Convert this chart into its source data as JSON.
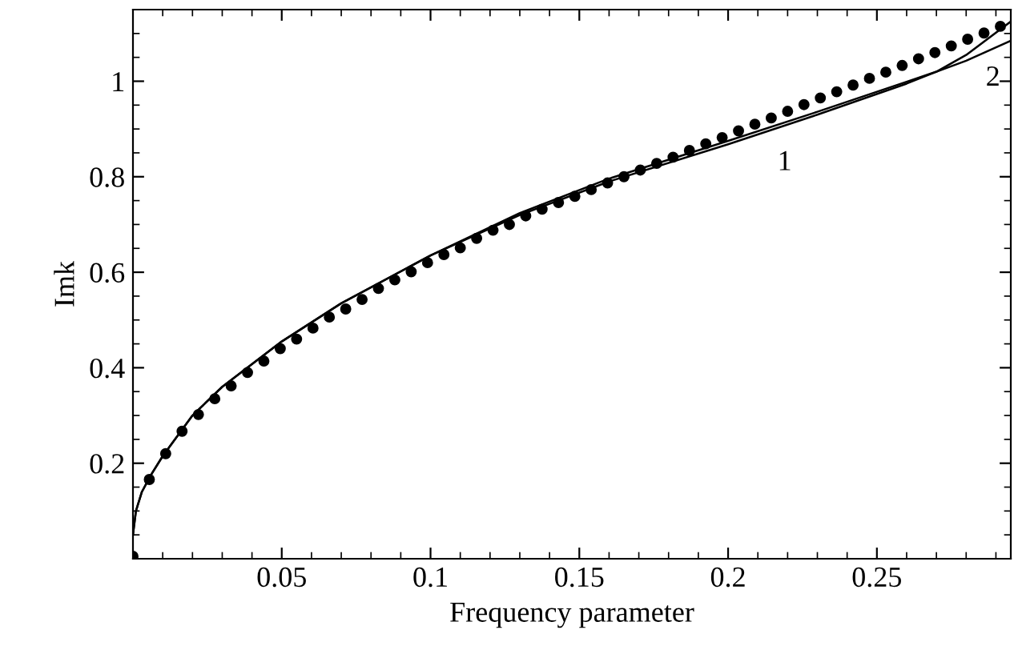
{
  "chart_data": {
    "type": "line",
    "xlabel": "Frequency parameter",
    "ylabel": "Imk",
    "xlim": [
      0,
      0.295
    ],
    "ylim": [
      0,
      1.15
    ],
    "xticks": [
      0.05,
      0.1,
      0.15,
      0.2,
      0.25
    ],
    "yticks": [
      0.2,
      0.4,
      0.6,
      0.8,
      1
    ],
    "grid": false,
    "series": [
      {
        "color": "#000000",
        "marker": "none",
        "line_style": "solid",
        "x": [
          0,
          0.001,
          0.003,
          0.006,
          0.01,
          0.02,
          0.03,
          0.05,
          0.07,
          0.1,
          0.13,
          0.16,
          0.2,
          0.23,
          0.26,
          0.27,
          0.28,
          0.295
        ],
        "values": [
          0.05,
          0.1,
          0.14,
          0.175,
          0.215,
          0.3,
          0.36,
          0.455,
          0.535,
          0.635,
          0.72,
          0.79,
          0.868,
          0.93,
          0.995,
          1.02,
          1.055,
          1.125
        ]
      },
      {
        "color": "#000000",
        "marker": "none",
        "line_style": "solid",
        "x": [
          0,
          0.001,
          0.003,
          0.006,
          0.01,
          0.02,
          0.03,
          0.05,
          0.07,
          0.1,
          0.13,
          0.16,
          0.2,
          0.23,
          0.26,
          0.27,
          0.28,
          0.295
        ],
        "values": [
          0.05,
          0.1,
          0.14,
          0.175,
          0.215,
          0.3,
          0.36,
          0.455,
          0.535,
          0.635,
          0.724,
          0.796,
          0.875,
          0.936,
          0.999,
          1.02,
          1.043,
          1.085
        ]
      },
      {
        "type": "scatter",
        "color": "#000000",
        "marker": "circle",
        "x": [
          0,
          0.0055,
          0.011,
          0.0165,
          0.022,
          0.0275,
          0.033,
          0.0385,
          0.044,
          0.0495,
          0.055,
          0.0605,
          0.066,
          0.0715,
          0.077,
          0.0825,
          0.088,
          0.0935,
          0.099,
          0.1045,
          0.11,
          0.1155,
          0.121,
          0.1265,
          0.132,
          0.1375,
          0.143,
          0.1485,
          0.154,
          0.1595,
          0.165,
          0.1705,
          0.176,
          0.1815,
          0.187,
          0.1925,
          0.198,
          0.2035,
          0.209,
          0.2145,
          0.22,
          0.2255,
          0.231,
          0.2365,
          0.242,
          0.2475,
          0.253,
          0.2585,
          0.264,
          0.2695,
          0.275,
          0.2805,
          0.286,
          0.2915
        ],
        "values": [
          0.005,
          0.166,
          0.22,
          0.267,
          0.302,
          0.335,
          0.362,
          0.39,
          0.414,
          0.44,
          0.46,
          0.483,
          0.506,
          0.523,
          0.543,
          0.566,
          0.584,
          0.601,
          0.62,
          0.637,
          0.651,
          0.671,
          0.688,
          0.7,
          0.718,
          0.732,
          0.746,
          0.759,
          0.773,
          0.787,
          0.8,
          0.814,
          0.828,
          0.841,
          0.855,
          0.869,
          0.882,
          0.896,
          0.91,
          0.923,
          0.937,
          0.951,
          0.965,
          0.978,
          0.992,
          1.006,
          1.019,
          1.033,
          1.047,
          1.06,
          1.074,
          1.088,
          1.101,
          1.115
        ]
      }
    ],
    "annotations": [
      {
        "text": "1",
        "x": 0.219,
        "y": 0.893
      },
      {
        "text": "2",
        "x": 0.289,
        "y": 1.07
      }
    ]
  }
}
